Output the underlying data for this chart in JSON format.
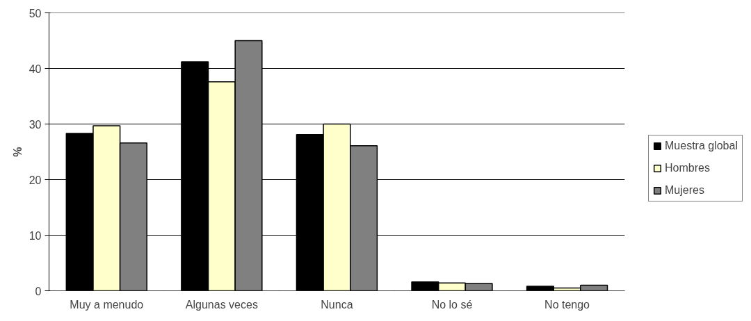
{
  "chart_data": {
    "type": "bar",
    "ylabel": "%",
    "categories": [
      "Muy a menudo",
      "Algunas veces",
      "Nunca",
      "No lo sé",
      "No tengo"
    ],
    "series": [
      {
        "name": "Muestra global",
        "color": "#000000",
        "values": [
          28.3,
          41.2,
          28.1,
          1.6,
          0.8
        ]
      },
      {
        "name": "Hombres",
        "color": "#ffffcc",
        "values": [
          29.7,
          37.6,
          30.0,
          1.4,
          0.5
        ]
      },
      {
        "name": "Mujeres",
        "color": "#808080",
        "values": [
          26.6,
          45.0,
          26.1,
          1.3,
          1.0
        ]
      }
    ],
    "ylim": [
      0,
      50
    ],
    "yticks": [
      0,
      10,
      20,
      30,
      40,
      50
    ],
    "grid": "y",
    "legend": "right"
  }
}
